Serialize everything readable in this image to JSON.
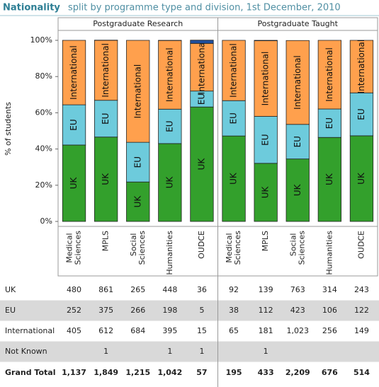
{
  "chart_data": {
    "type": "bar",
    "stacked": true,
    "title": "Nationality",
    "subtitle": "split by programme type and division, 1st December, 2010",
    "y_label": "% of students",
    "panels": [
      "Postgraduate Research",
      "Postgraduate Taught"
    ],
    "categories": [
      "Medical Sciences",
      "MPLS",
      "Social Sciences",
      "Humanities",
      "OUDCE",
      "Medical Sciences",
      "MPLS",
      "Social Sciences",
      "Humanities",
      "OUDCE"
    ],
    "series": [
      {
        "name": "UK",
        "color": "#33a02c",
        "values": [
          42.2,
          46.6,
          21.8,
          43.0,
          63.2,
          47.2,
          32.1,
          34.5,
          46.4,
          47.3
        ]
      },
      {
        "name": "EU",
        "color": "#6dcbdc",
        "values": [
          22.2,
          20.3,
          21.9,
          19.0,
          8.8,
          19.5,
          25.9,
          19.1,
          15.7,
          23.7
        ]
      },
      {
        "name": "International",
        "color": "#ffa04d",
        "values": [
          35.6,
          33.1,
          56.3,
          37.9,
          26.3,
          33.3,
          41.8,
          46.3,
          37.9,
          29.0
        ]
      },
      {
        "name": "Not Known",
        "color": "#1f4e9c",
        "values": [
          0,
          0.1,
          0,
          0.1,
          1.8,
          0,
          0.2,
          0,
          0,
          0
        ]
      }
    ],
    "ylim": [
      0,
      100
    ],
    "yticks": [
      {
        "value": 0,
        "label": "0%"
      },
      {
        "value": 20,
        "label": "20%"
      },
      {
        "value": 40,
        "label": "40%"
      },
      {
        "value": 60,
        "label": "60%"
      },
      {
        "value": 80,
        "label": "80%"
      },
      {
        "value": 100,
        "label": "100%"
      }
    ]
  },
  "table": {
    "rows": [
      {
        "label": "UK",
        "values": [
          480,
          861,
          265,
          448,
          36,
          92,
          139,
          763,
          314,
          243
        ]
      },
      {
        "label": "EU",
        "values": [
          252,
          375,
          266,
          198,
          5,
          38,
          112,
          423,
          106,
          122
        ]
      },
      {
        "label": "International",
        "values": [
          405,
          612,
          684,
          395,
          15,
          65,
          181,
          "1,023",
          256,
          149
        ]
      },
      {
        "label": "Not Known",
        "values": [
          null,
          1,
          null,
          1,
          1,
          null,
          1,
          null,
          null,
          null
        ]
      },
      {
        "label": "Grand Total",
        "values": [
          "1,137",
          "1,849",
          "1,215",
          "1,042",
          57,
          195,
          433,
          "2,209",
          676,
          514
        ]
      }
    ]
  }
}
